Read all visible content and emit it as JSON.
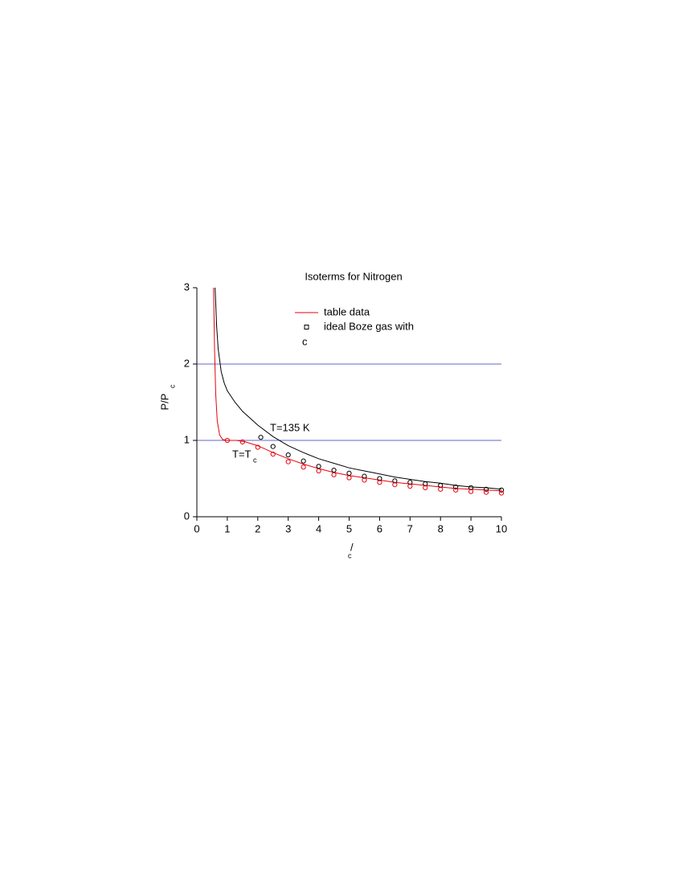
{
  "chart_data": {
    "type": "line",
    "title": "Isoterms for Nitrogen",
    "ylabel": "P/P",
    "ylabel_sub": "c",
    "xlabel": "/",
    "xlabel_sub": "c",
    "xlim": [
      0,
      10
    ],
    "xticks": [
      0,
      1,
      2,
      3,
      4,
      5,
      6,
      7,
      8,
      9,
      10
    ],
    "ylim": [
      0,
      3
    ],
    "yticks": [
      0,
      1,
      2,
      3
    ],
    "reference_lines": [
      1,
      2
    ],
    "reference_color": "#6666cc",
    "legend_note": "c",
    "annotations": [
      {
        "text": "T=135 K"
      },
      {
        "text": "T=T",
        "sub": "c"
      }
    ],
    "series": [
      {
        "name": "table data",
        "type": "line",
        "color": "#e8000b",
        "x": [
          0.55,
          0.58,
          0.62,
          0.67,
          0.75,
          0.85,
          1,
          1.3,
          1.6,
          2,
          2.5,
          3,
          3.5,
          4,
          4.5,
          5,
          5.5,
          6,
          6.5,
          7,
          7.5,
          8,
          8.5,
          9,
          9.5,
          10
        ],
        "values": [
          3,
          2.2,
          1.6,
          1.25,
          1.07,
          1.01,
          1,
          1,
          0.98,
          0.93,
          0.84,
          0.76,
          0.69,
          0.63,
          0.58,
          0.54,
          0.51,
          0.48,
          0.45,
          0.43,
          0.41,
          0.39,
          0.37,
          0.36,
          0.35,
          0.34
        ]
      },
      {
        "type": "line",
        "color": "#000000",
        "x": [
          0.6,
          0.65,
          0.7,
          0.8,
          0.9,
          1,
          1.25,
          1.5,
          2,
          2.5,
          3,
          3.5,
          4,
          4.5,
          5,
          5.5,
          6,
          6.5,
          7,
          7.5,
          8,
          8.5,
          9,
          9.5,
          10
        ],
        "values": [
          3,
          2.5,
          2.2,
          1.9,
          1.75,
          1.65,
          1.5,
          1.38,
          1.2,
          1.05,
          0.93,
          0.84,
          0.76,
          0.7,
          0.64,
          0.6,
          0.56,
          0.52,
          0.49,
          0.46,
          0.44,
          0.41,
          0.39,
          0.38,
          0.36
        ]
      },
      {
        "name": "ideal Boze gas with",
        "type": "scatter",
        "color": "#000000",
        "x": [
          2.1,
          2.5,
          3,
          3.5,
          4,
          4.5,
          5,
          5.5,
          6,
          6.5,
          7,
          7.5,
          8,
          8.5,
          9,
          9.5,
          10
        ],
        "values": [
          1.04,
          0.92,
          0.81,
          0.73,
          0.66,
          0.61,
          0.57,
          0.53,
          0.5,
          0.47,
          0.45,
          0.43,
          0.41,
          0.39,
          0.38,
          0.36,
          0.35
        ]
      },
      {
        "type": "scatter",
        "color": "#e8000b",
        "x": [
          1,
          1.5,
          2,
          2.5,
          3,
          3.5,
          4,
          4.5,
          5,
          5.5,
          6,
          6.5,
          7,
          7.5,
          8,
          8.5,
          9,
          9.5,
          10
        ],
        "values": [
          1,
          0.98,
          0.91,
          0.82,
          0.72,
          0.65,
          0.6,
          0.55,
          0.51,
          0.48,
          0.45,
          0.42,
          0.4,
          0.38,
          0.36,
          0.35,
          0.33,
          0.32,
          0.31
        ]
      }
    ]
  }
}
